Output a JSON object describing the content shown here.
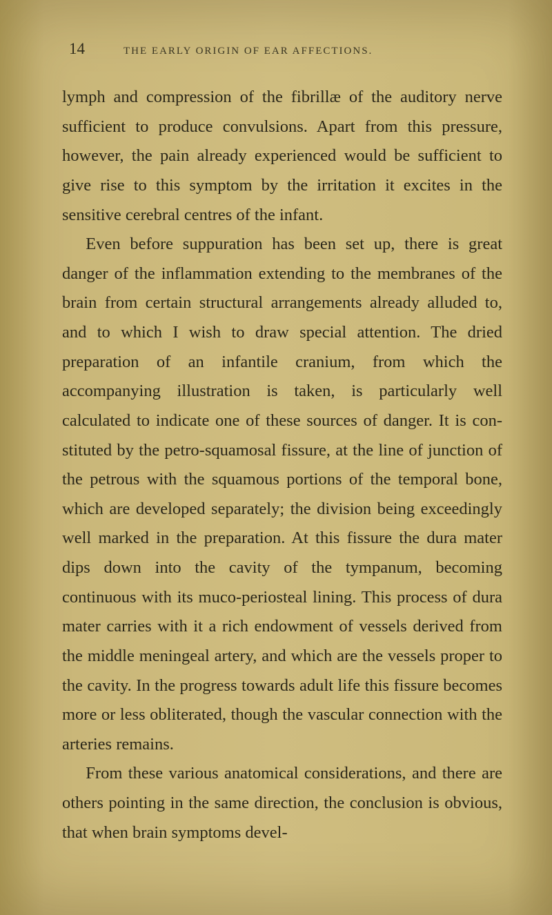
{
  "page": {
    "number": "14",
    "running_head": "THE EARLY ORIGIN OF EAR AFFECTIONS."
  },
  "paragraphs": [
    "lymph and compression of the fibrillæ of the auditory nerve sufficient to produce convulsions. Apart from this pressure, however, the pain already experienced would be sufficient to give rise to this symptom by the irritation it excites in the sensitive cerebral centres of the infant.",
    "Even before suppuration has been set up, there is great danger of the inflammation extending to the membranes of the brain from certain structural ar­rangements already alluded to, and to which I wish to draw special attention. The dried preparation of an infantile cranium, from which the accompanying illus­tration is taken, is particularly well calculated to indicate one of these sources of danger. It is con­stituted by the petro-squamosal fissure, at the line of junction of the petrous with the squamous por­tions of the temporal bone, which are developed se­parately; the division being exceedingly well marked in the preparation. At this fissure the dura mater dips down into the cavity of the tympanum, be­coming continuous with its muco-periosteal lining. This process of dura mater carries with it a rich en­dowment of vessels derived from the middle meningeal artery, and which are the vessels proper to the cavity. In the progress towards adult life this fissure becomes more or less obliterated, though the vascular connection with the arteries remains.",
    "From these various anatomical considerations, and there are others pointing in the same direction, the conclusion is obvious, that when brain symptoms devel-"
  ],
  "style": {
    "background_color": "#c9b678",
    "body_text_color": "#2b2719",
    "header_text_color": "#3a3523",
    "font_size_body": 24.5,
    "font_size_pagenum": 23,
    "font_size_header": 15,
    "line_height": 1.74
  }
}
